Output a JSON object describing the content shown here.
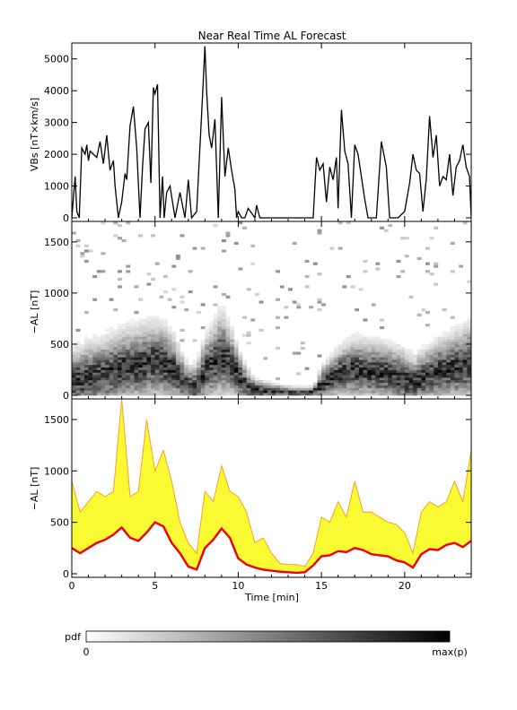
{
  "chart_data": [
    {
      "type": "line",
      "title": "Near Real Time AL Forecast",
      "ylabel": "VBs [nT×km/s]",
      "xlim": [
        0,
        24
      ],
      "ylim": [
        0,
        5500
      ],
      "yticks": [
        0,
        1000,
        2000,
        3000,
        4000,
        5000
      ],
      "series": [
        {
          "color": "#000000",
          "x": [
            0,
            0.2,
            0.3,
            0.45,
            0.6,
            0.8,
            0.9,
            1.0,
            1.1,
            1.3,
            1.5,
            1.7,
            1.9,
            2.1,
            2.3,
            2.5,
            2.6,
            2.8,
            3.0,
            3.2,
            3.3,
            3.5,
            3.7,
            3.9,
            4.1,
            4.25,
            4.4,
            4.6,
            4.75,
            4.9,
            5.0,
            5.15,
            5.3,
            5.45,
            5.55,
            5.7,
            5.9,
            6.2,
            6.5,
            6.8,
            7.0,
            7.2,
            7.5,
            7.9,
            8.0,
            8.1,
            8.25,
            8.4,
            8.6,
            8.8,
            9.0,
            9.2,
            9.4,
            9.6,
            9.8,
            9.9,
            10.0,
            10.2,
            10.4,
            10.6,
            11.0,
            11.1,
            11.3,
            11.5,
            12.0,
            13.0,
            14.0,
            14.5,
            14.7,
            14.9,
            15.1,
            15.3,
            15.5,
            15.7,
            15.9,
            16.0,
            16.2,
            16.4,
            16.6,
            16.8,
            17.0,
            17.2,
            17.4,
            17.6,
            17.8,
            18.0,
            18.3,
            18.6,
            18.9,
            19.1,
            19.3,
            19.6,
            20.0,
            20.3,
            20.5,
            20.7,
            20.9,
            21.1,
            21.3,
            21.5,
            21.7,
            21.9,
            22.1,
            22.3,
            22.5,
            22.7,
            22.9,
            23.1,
            23.3,
            23.5,
            23.7,
            23.9,
            24.0
          ],
          "y": [
            0,
            1300,
            200,
            0,
            2200,
            2000,
            2300,
            1800,
            2100,
            2000,
            1900,
            2400,
            1700,
            2600,
            1500,
            1800,
            1000,
            0,
            500,
            1400,
            1200,
            2900,
            3500,
            2200,
            0,
            1600,
            2800,
            3000,
            1100,
            4100,
            3900,
            4200,
            0,
            1300,
            0,
            800,
            1000,
            0,
            800,
            0,
            1200,
            0,
            200,
            4300,
            5400,
            4000,
            2600,
            2200,
            3100,
            0,
            3800,
            1300,
            2200,
            1500,
            900,
            0,
            200,
            0,
            0,
            300,
            0,
            400,
            0,
            0,
            0,
            0,
            0,
            0,
            1900,
            1500,
            1700,
            500,
            1600,
            1200,
            1900,
            300,
            3400,
            2100,
            1700,
            0,
            2300,
            2000,
            1300,
            600,
            0,
            0,
            0,
            2400,
            1600,
            0,
            0,
            0,
            200,
            1100,
            2000,
            1500,
            1400,
            200,
            1200,
            3200,
            1900,
            2600,
            1000,
            1300,
            1200,
            2000,
            700,
            1600,
            1800,
            2300,
            1600,
            1300,
            0
          ]
        }
      ]
    },
    {
      "type": "heatmap",
      "ylabel": "−AL [nT]",
      "xlim": [
        0,
        24
      ],
      "ylim": [
        0,
        1700
      ],
      "yticks": [
        0,
        500,
        1000,
        1500
      ],
      "colorbar": {
        "label": "pdf",
        "min_label": "0",
        "max_label": "max(p)"
      },
      "bin_width_min": 0.25,
      "bin_height_nT": 25,
      "center_curve": {
        "x": [
          0,
          1,
          2,
          3,
          4,
          5,
          5.5,
          6,
          6.5,
          7,
          7.5,
          8,
          8.5,
          9,
          9.5,
          10,
          10.5,
          11,
          12,
          13,
          13.5,
          14,
          14.5,
          15,
          16,
          17,
          18,
          19,
          20,
          20.5,
          21,
          22,
          23,
          24
        ],
        "y": [
          120,
          170,
          200,
          250,
          280,
          320,
          300,
          250,
          160,
          80,
          50,
          240,
          300,
          380,
          320,
          180,
          80,
          40,
          30,
          20,
          15,
          10,
          20,
          90,
          200,
          240,
          220,
          200,
          150,
          90,
          150,
          220,
          260,
          300
        ]
      },
      "spread": {
        "x": [
          0,
          3,
          5,
          6,
          7,
          8,
          9,
          10,
          11,
          13,
          14.5,
          15,
          17,
          20,
          21,
          24
        ],
        "y": [
          350,
          420,
          450,
          400,
          220,
          350,
          500,
          300,
          120,
          60,
          50,
          200,
          350,
          320,
          300,
          450
        ]
      }
    },
    {
      "type": "area",
      "ylabel": "−AL [nT]",
      "xlabel": "Time [min]",
      "xlim": [
        0,
        24
      ],
      "ylim": [
        0,
        1700
      ],
      "yticks": [
        0,
        500,
        1000,
        1500
      ],
      "xticks": [
        0,
        5,
        10,
        15,
        20
      ],
      "median": {
        "color": "#ee0000",
        "x": [
          0,
          0.5,
          1,
          1.5,
          2,
          2.5,
          3,
          3.5,
          4,
          4.5,
          5,
          5.5,
          6,
          6.5,
          7,
          7.5,
          8,
          8.5,
          9,
          9.5,
          10,
          10.5,
          11,
          11.5,
          12,
          12.5,
          13,
          13.5,
          14,
          14.5,
          15,
          15.5,
          16,
          16.5,
          17,
          17.5,
          18,
          18.5,
          19,
          19.5,
          20,
          20.5,
          21,
          21.5,
          22,
          22.5,
          23,
          23.5,
          24
        ],
        "y": [
          250,
          200,
          250,
          300,
          330,
          380,
          450,
          350,
          320,
          400,
          500,
          460,
          300,
          200,
          70,
          40,
          250,
          330,
          440,
          350,
          150,
          90,
          60,
          40,
          30,
          20,
          15,
          10,
          15,
          80,
          170,
          180,
          220,
          210,
          250,
          230,
          190,
          180,
          170,
          130,
          110,
          60,
          190,
          240,
          230,
          280,
          300,
          260,
          320
        ]
      },
      "upper": {
        "color": "#f5a030",
        "x": [
          0,
          0.5,
          1,
          1.5,
          2,
          2.5,
          3,
          3.5,
          4,
          4.5,
          5,
          5.5,
          6,
          6.5,
          7,
          7.5,
          8,
          8.5,
          9,
          9.5,
          10,
          10.5,
          11,
          11.5,
          12,
          12.5,
          13,
          13.5,
          14,
          14.5,
          15,
          15.5,
          16,
          16.5,
          17,
          17.5,
          18,
          18.5,
          19,
          19.5,
          20,
          20.5,
          21,
          21.5,
          22,
          22.5,
          23,
          23.5,
          24
        ],
        "y": [
          900,
          600,
          700,
          800,
          750,
          800,
          1700,
          750,
          800,
          1500,
          1000,
          1200,
          900,
          500,
          300,
          200,
          800,
          700,
          1050,
          800,
          750,
          600,
          300,
          350,
          200,
          100,
          90,
          90,
          70,
          200,
          550,
          500,
          700,
          550,
          900,
          600,
          600,
          550,
          500,
          480,
          400,
          200,
          600,
          700,
          650,
          700,
          900,
          700,
          1200
        ]
      },
      "band_color": "#fafa33"
    }
  ]
}
